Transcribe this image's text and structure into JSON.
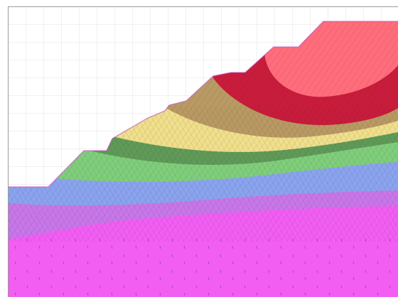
{
  "view": {
    "type": "slope-stability-contour-plot",
    "background_color": "#ffffff",
    "grid_color": "#e3e3e3",
    "frame_color": "#9a9a9a"
  },
  "legend": {
    "shown": false
  },
  "contour_bands": [
    {
      "name": "band-magenta-base",
      "color": "#f25ef2"
    },
    {
      "name": "band-violet",
      "color": "#c877e8"
    },
    {
      "name": "band-blue",
      "color": "#8aa4ee"
    },
    {
      "name": "band-green",
      "color": "#7fcf7a"
    },
    {
      "name": "band-dark-green",
      "color": "#5f9b56"
    },
    {
      "name": "band-yellow",
      "color": "#f0e08a"
    },
    {
      "name": "band-olive",
      "color": "#b89a62"
    },
    {
      "name": "band-red",
      "color": "#c81c3a"
    },
    {
      "name": "band-salmon",
      "color": "#ff6c7a"
    }
  ]
}
